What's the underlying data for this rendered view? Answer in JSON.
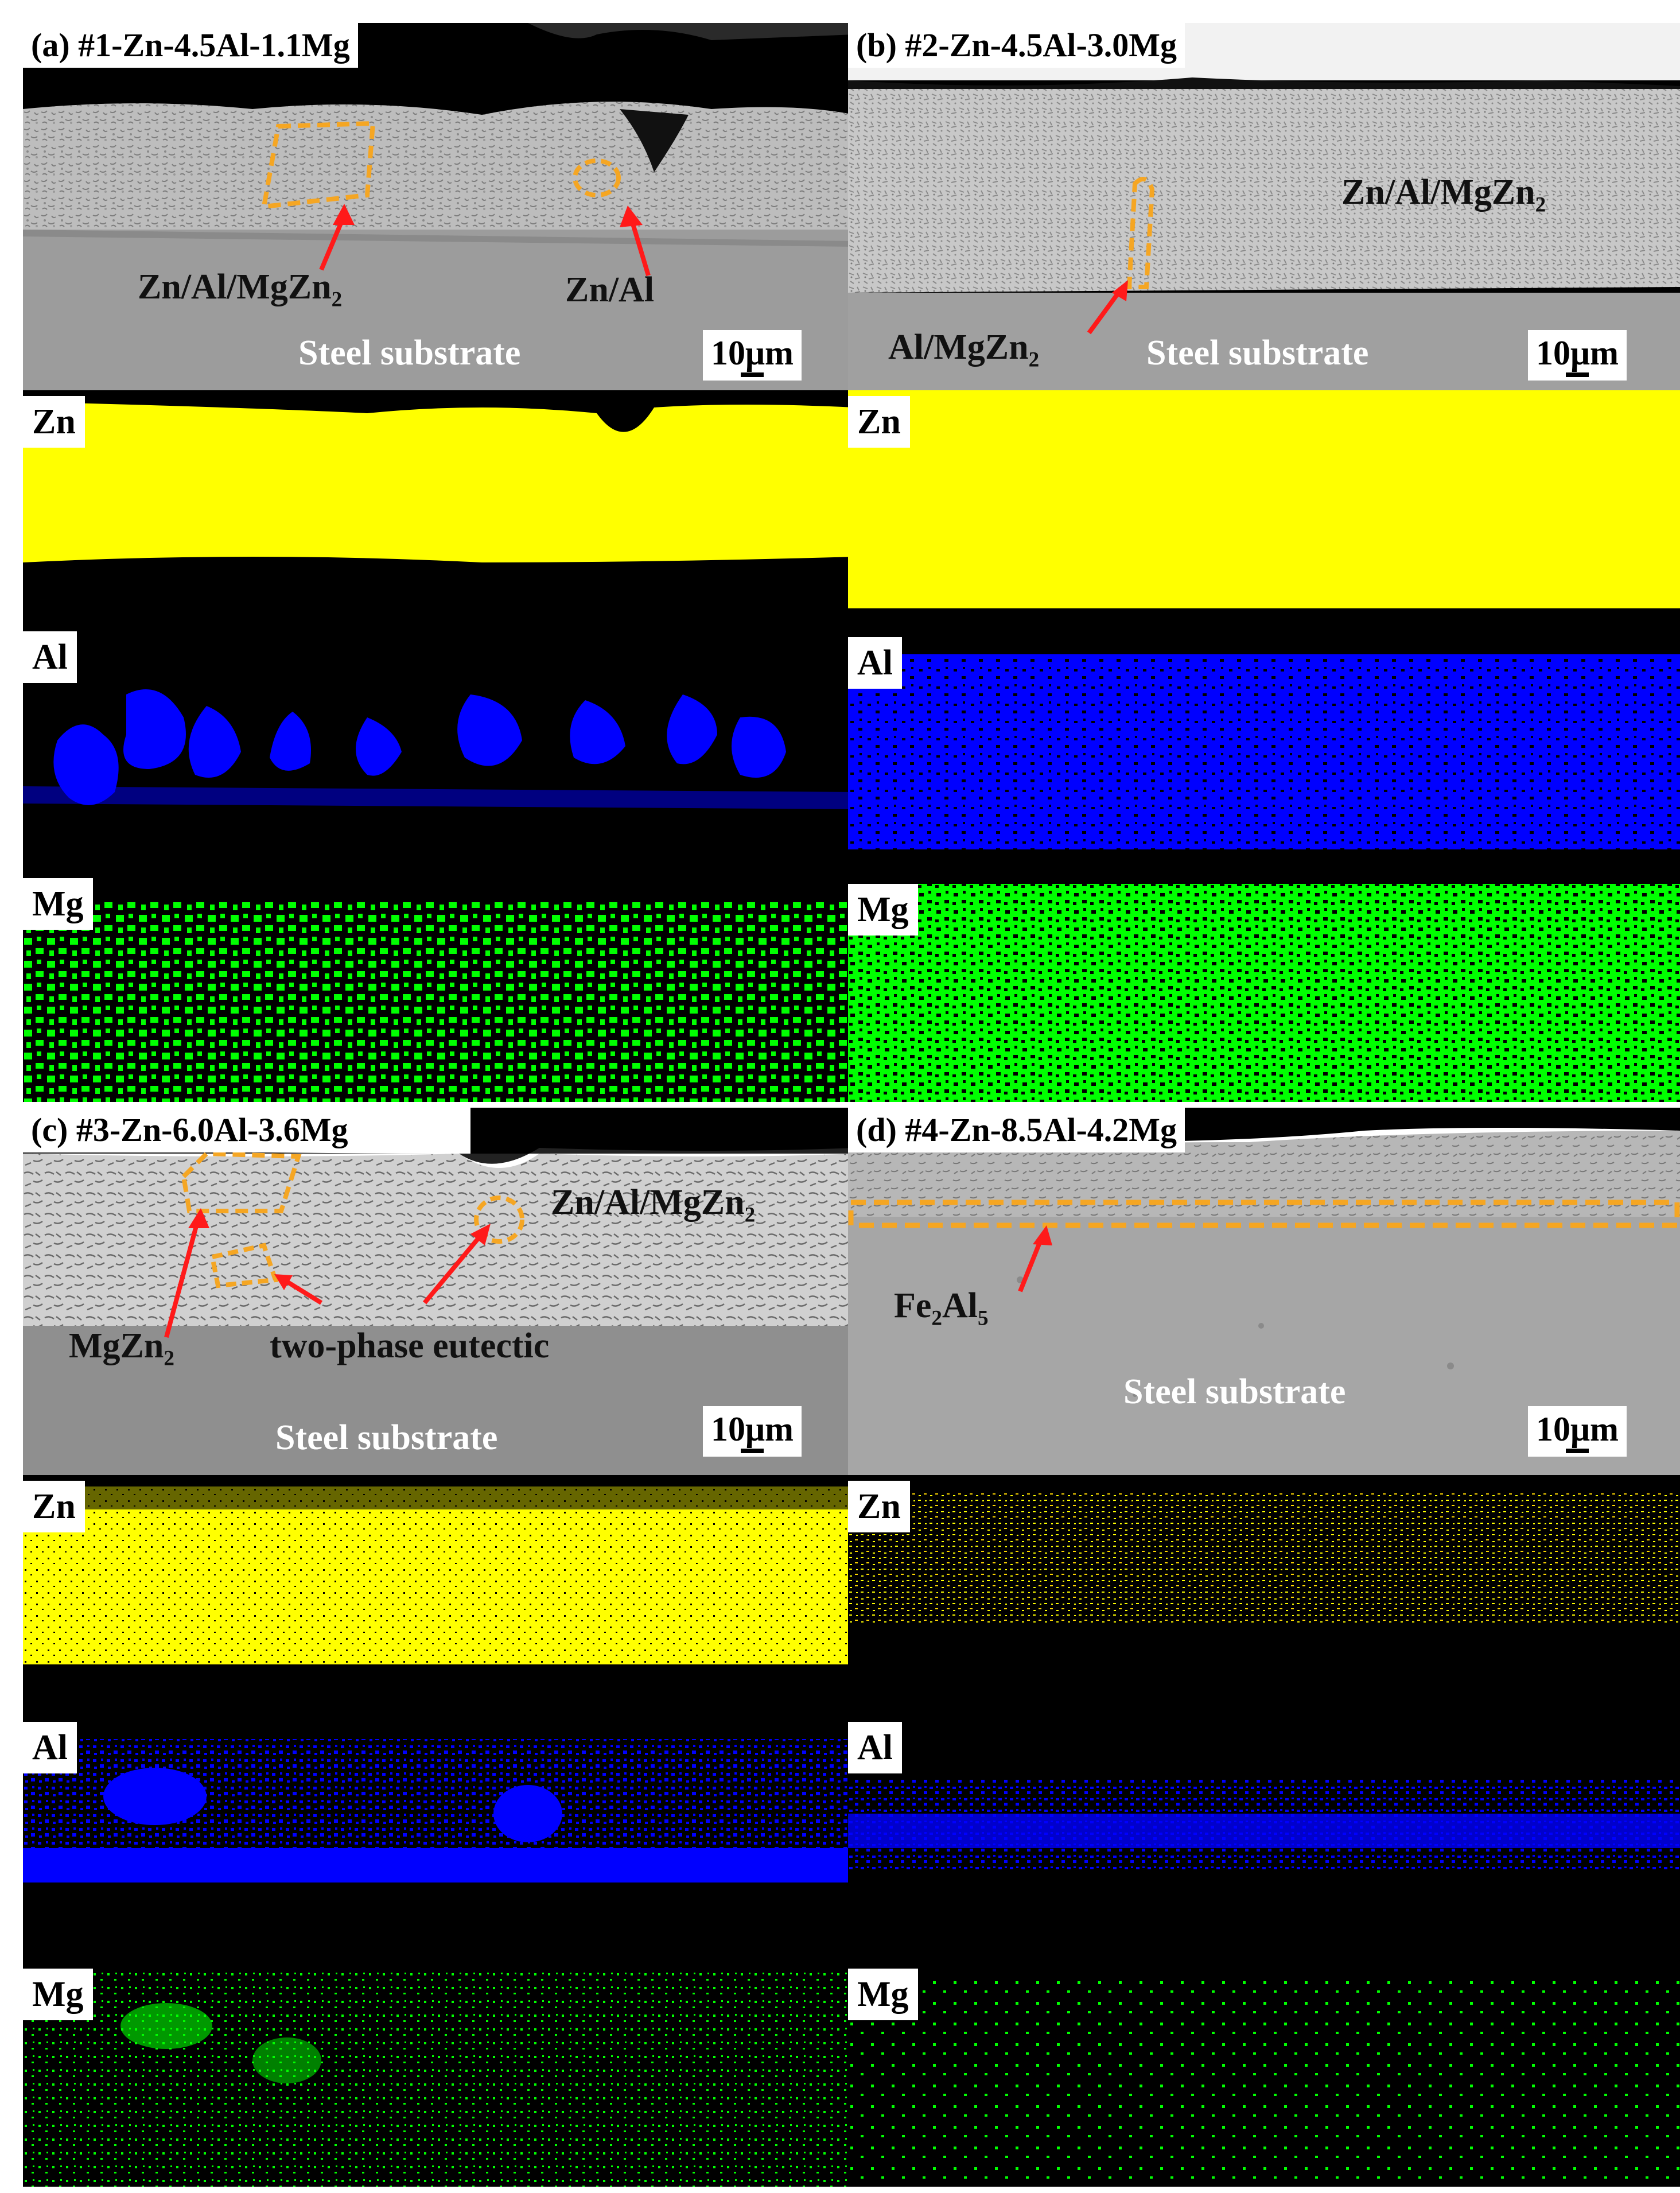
{
  "panels": [
    {
      "id": "a",
      "title": "(a) #1-Zn-4.5Al-1.1Mg",
      "annotations": [
        "Zn/Al/MgZn2",
        "Zn/Al"
      ],
      "substrate": "Steel substrate",
      "scale_bar": "10μm",
      "maps": [
        {
          "element": "Zn",
          "color": "#ffff00",
          "density": 0.98
        },
        {
          "element": "Al",
          "color": "#0000ff",
          "density": 0.35
        },
        {
          "element": "Mg",
          "color": "#00ff00",
          "density": 0.45
        }
      ]
    },
    {
      "id": "b",
      "title": "(b) #2-Zn-4.5Al-3.0Mg",
      "annotations": [
        "Zn/Al/MgZn2",
        "Al/MgZn2"
      ],
      "substrate": "Steel substrate",
      "scale_bar": "10μm",
      "maps": [
        {
          "element": "Zn",
          "color": "#ffff00",
          "density": 0.98
        },
        {
          "element": "Al",
          "color": "#0000ff",
          "density": 0.75
        },
        {
          "element": "Mg",
          "color": "#00ff00",
          "density": 0.6
        }
      ]
    },
    {
      "id": "c",
      "title": "(c) #3-Zn-6.0Al-3.6Mg",
      "annotations": [
        "Zn/Al/MgZn2",
        "MgZn2",
        "two-phase eutectic"
      ],
      "substrate": "Steel substrate",
      "scale_bar": "10μm",
      "maps": [
        {
          "element": "Zn",
          "color": "#ffff00",
          "density": 0.95
        },
        {
          "element": "Al",
          "color": "#0000ff",
          "density": 0.6
        },
        {
          "element": "Mg",
          "color": "#00ff00",
          "density": 0.25
        }
      ]
    },
    {
      "id": "d",
      "title": "(d) #4-Zn-8.5Al-4.2Mg",
      "annotations": [
        "Fe2Al5"
      ],
      "substrate": "Steel substrate",
      "scale_bar": "10μm",
      "maps": [
        {
          "element": "Zn",
          "color": "#ffff00",
          "density": 0.5
        },
        {
          "element": "Al",
          "color": "#0000ff",
          "density": 0.45
        },
        {
          "element": "Mg",
          "color": "#00ff00",
          "density": 0.15
        }
      ]
    }
  ],
  "colors": {
    "annotation_box": "#f5a623",
    "arrow": "#ff1a1a"
  }
}
